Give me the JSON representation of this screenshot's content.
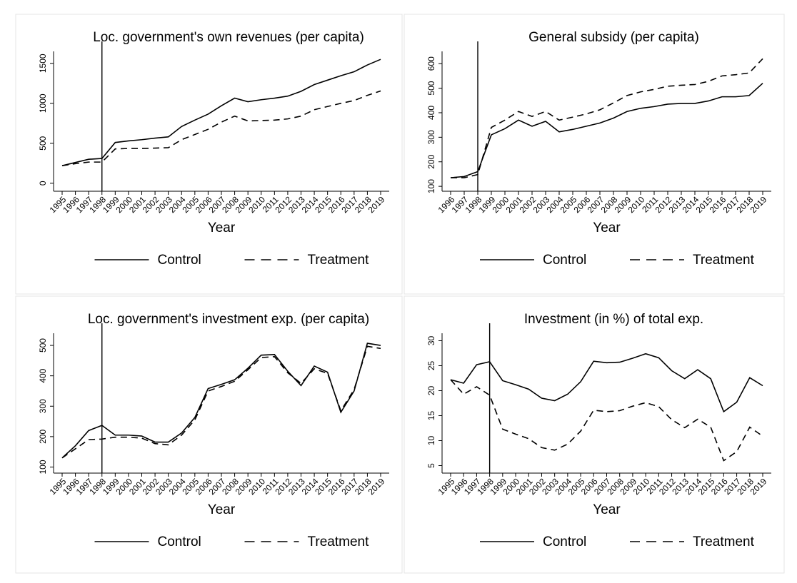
{
  "chart_data": [
    {
      "type": "line",
      "title": "Loc. government's own revenues (per capita)",
      "xlabel": "Year",
      "categories": [
        "1995",
        "1996",
        "1997",
        "1998",
        "1999",
        "2000",
        "2001",
        "2002",
        "2003",
        "2004",
        "2005",
        "2006",
        "2007",
        "2008",
        "2009",
        "2010",
        "2011",
        "2012",
        "2013",
        "2014",
        "2015",
        "2016",
        "2017",
        "2018",
        "2019"
      ],
      "vline": "1998",
      "series": [
        {
          "name": "Control",
          "color": "#000000",
          "style": "solid",
          "values": [
            220,
            260,
            300,
            310,
            510,
            530,
            545,
            565,
            580,
            710,
            790,
            865,
            970,
            1065,
            1020,
            1045,
            1065,
            1090,
            1150,
            1235,
            1290,
            1345,
            1395,
            1480,
            1550
          ]
        },
        {
          "name": "Treatment",
          "color": "#000000",
          "style": "dashed",
          "values": [
            220,
            245,
            265,
            265,
            430,
            435,
            435,
            440,
            445,
            545,
            610,
            675,
            765,
            840,
            780,
            785,
            790,
            805,
            840,
            920,
            960,
            1000,
            1035,
            1100,
            1155
          ]
        }
      ],
      "ylim": [
        -100,
        1650
      ],
      "yticks": [
        0,
        500,
        1000,
        1500
      ]
    },
    {
      "type": "line",
      "title": "General subsidy (per capita)",
      "xlabel": "Year",
      "categories": [
        "1996",
        "1997",
        "1998",
        "1999",
        "2000",
        "2001",
        "2002",
        "2003",
        "2004",
        "2005",
        "2006",
        "2007",
        "2008",
        "2009",
        "2010",
        "2011",
        "2012",
        "2013",
        "2014",
        "2015",
        "2016",
        "2017",
        "2018",
        "2019"
      ],
      "vline": "1998",
      "series": [
        {
          "name": "Control",
          "color": "#000000",
          "style": "solid",
          "values": [
            135,
            140,
            160,
            310,
            335,
            370,
            345,
            365,
            322,
            332,
            345,
            358,
            378,
            405,
            418,
            425,
            435,
            438,
            438,
            448,
            465,
            465,
            470,
            520
          ]
        },
        {
          "name": "Treatment",
          "color": "#000000",
          "style": "dashed",
          "values": [
            135,
            135,
            148,
            340,
            370,
            405,
            385,
            405,
            370,
            382,
            395,
            412,
            440,
            470,
            485,
            495,
            508,
            512,
            515,
            528,
            550,
            555,
            562,
            620
          ]
        }
      ],
      "ylim": [
        80,
        650
      ],
      "yticks": [
        100,
        200,
        300,
        400,
        500,
        600
      ]
    },
    {
      "type": "line",
      "title": "Loc. government's investment exp. (per capita)",
      "xlabel": "Year",
      "categories": [
        "1995",
        "1996",
        "1997",
        "1998",
        "1999",
        "2000",
        "2001",
        "2002",
        "2003",
        "2004",
        "2005",
        "2006",
        "2007",
        "2008",
        "2009",
        "2010",
        "2011",
        "2012",
        "2013",
        "2014",
        "2015",
        "2016",
        "2017",
        "2018",
        "2019"
      ],
      "vline": "1998",
      "series": [
        {
          "name": "Control",
          "color": "#000000",
          "style": "solid",
          "values": [
            130,
            170,
            220,
            237,
            205,
            205,
            202,
            182,
            182,
            212,
            263,
            358,
            372,
            387,
            425,
            468,
            470,
            415,
            368,
            432,
            412,
            280,
            350,
            507,
            500
          ]
        },
        {
          "name": "Treatment",
          "color": "#000000",
          "style": "dashed",
          "values": [
            130,
            160,
            190,
            192,
            198,
            198,
            195,
            177,
            173,
            205,
            255,
            350,
            365,
            382,
            420,
            460,
            463,
            410,
            375,
            423,
            408,
            285,
            355,
            497,
            490
          ]
        }
      ],
      "ylim": [
        80,
        540
      ],
      "yticks": [
        100,
        200,
        300,
        400,
        500
      ]
    },
    {
      "type": "line",
      "title": "Investment (in %) of total exp.",
      "xlabel": "Year",
      "categories": [
        "1995",
        "1996",
        "1997",
        "1998",
        "1999",
        "2000",
        "2001",
        "2002",
        "2003",
        "2004",
        "2005",
        "2006",
        "2007",
        "2008",
        "2009",
        "2010",
        "2011",
        "2012",
        "2013",
        "2014",
        "2015",
        "2016",
        "2017",
        "2018",
        "2019"
      ],
      "vline": "1998",
      "series": [
        {
          "name": "Control",
          "color": "#000000",
          "style": "solid",
          "values": [
            22.2,
            21.5,
            25.2,
            25.8,
            22.0,
            21.2,
            20.3,
            18.5,
            18.0,
            19.3,
            21.8,
            25.9,
            25.6,
            25.7,
            26.5,
            27.4,
            26.6,
            24.0,
            22.4,
            24.2,
            22.4,
            15.8,
            17.7,
            22.6,
            21.0
          ]
        },
        {
          "name": "Treatment",
          "color": "#000000",
          "style": "dashed",
          "values": [
            22.2,
            19.3,
            20.8,
            19.1,
            12.3,
            11.3,
            10.4,
            8.6,
            8.1,
            9.3,
            11.9,
            16.1,
            15.8,
            16.0,
            16.9,
            17.6,
            16.8,
            14.2,
            12.6,
            14.3,
            12.7,
            6.0,
            7.8,
            12.7,
            10.9
          ]
        }
      ],
      "ylim": [
        3.5,
        31.5
      ],
      "yticks": [
        5,
        10,
        15,
        20,
        25,
        30
      ]
    }
  ]
}
